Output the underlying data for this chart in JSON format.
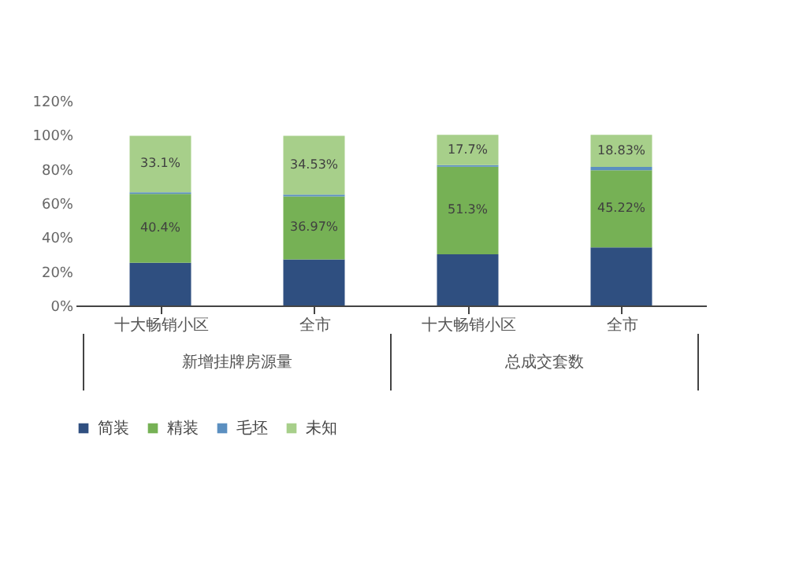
{
  "chart_data": {
    "type": "bar",
    "stacked": true,
    "categories": [
      "十大畅销小区",
      "全市",
      "十大畅销小区",
      "全市"
    ],
    "series": [
      {
        "name": "简装",
        "color": "#2f4f80",
        "values": [
          25,
          27,
          30,
          34
        ]
      },
      {
        "name": "精装",
        "color": "#76b155",
        "values": [
          40.4,
          36.97,
          51.3,
          45.22
        ],
        "value_labels": [
          "40.4%",
          "36.97%",
          "51.3%",
          "45.22%"
        ]
      },
      {
        "name": "毛坯",
        "color": "#5b8fc0",
        "values": [
          1,
          1,
          1,
          2
        ]
      },
      {
        "name": "未知",
        "color": "#a7cf8a",
        "values": [
          33.1,
          34.53,
          17.7,
          18.83
        ],
        "value_labels": [
          "33.1%",
          "34.53%",
          "17.7%",
          "18.83%"
        ]
      }
    ],
    "ylim": [
      0,
      120
    ],
    "yticks": [
      {
        "value": 0,
        "label": "0%"
      },
      {
        "value": 20,
        "label": "20%"
      },
      {
        "value": 40,
        "label": "40%"
      },
      {
        "value": 60,
        "label": "60%"
      },
      {
        "value": 80,
        "label": "80%"
      },
      {
        "value": 100,
        "label": "100%"
      },
      {
        "value": 120,
        "label": "120%"
      }
    ],
    "annotations": [
      "新增挂牌房源量",
      "总成交套数"
    ],
    "legend": "bottom"
  }
}
